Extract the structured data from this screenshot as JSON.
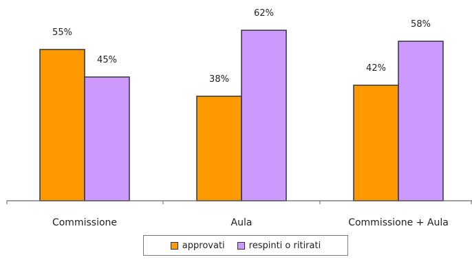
{
  "chart_data": {
    "type": "bar",
    "categories": [
      "Commissione",
      "Aula",
      "Commissione + Aula"
    ],
    "series": [
      {
        "name": "approvati",
        "values": [
          55,
          38,
          42
        ],
        "labels": [
          "55%",
          "38%",
          "42%"
        ],
        "color": "#ff9900"
      },
      {
        "name": "respinti o ritirati",
        "values": [
          45,
          62,
          58
        ],
        "labels": [
          "45%",
          "62%",
          "58%"
        ],
        "color": "#cc99ff"
      }
    ],
    "ylim": [
      0,
      70
    ],
    "grid": false,
    "legend_position": "bottom",
    "title": "",
    "xlabel": "",
    "ylabel": ""
  },
  "legend": {
    "items": [
      {
        "label": "approvati",
        "color": "#ff9900"
      },
      {
        "label": "respinti o ritirati",
        "color": "#cc99ff"
      }
    ]
  }
}
